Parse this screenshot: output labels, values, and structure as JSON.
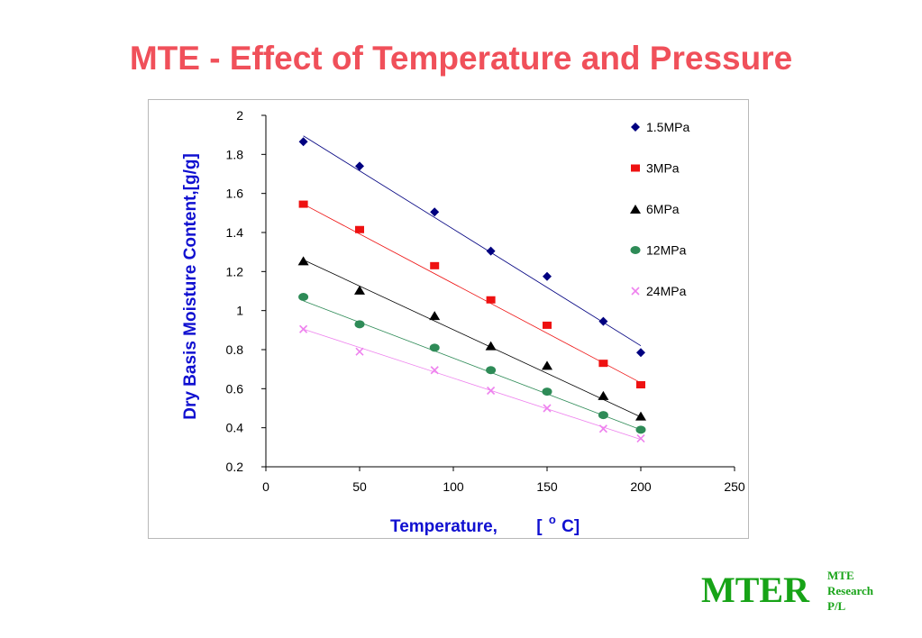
{
  "slide": {
    "title": "MTE - Effect of Temperature and Pressure"
  },
  "logo": {
    "main": "MTER",
    "line1": "MTE",
    "line2": "Research",
    "line3": "P/L",
    "color": "#17a317"
  },
  "chart_data": {
    "type": "scatter",
    "xlabel": "Temperature,      [°C]",
    "xlabel_prefix": "Temperature,",
    "xlabel_unit_open": "[",
    "xlabel_unit_deg": "o",
    "xlabel_unit_close": "C]",
    "ylabel": "Dry Basis Moisture Content,[g/g]",
    "xlim": [
      0,
      250
    ],
    "ylim": [
      0.2,
      2
    ],
    "xticks": [
      "0",
      "50",
      "100",
      "150",
      "200",
      "250"
    ],
    "yticks": [
      "0.2",
      "0.4",
      "0.6",
      "0.8",
      "1",
      "1.2",
      "1.4",
      "1.6",
      "1.8",
      "2"
    ],
    "grid": false,
    "legend_position": "top-right",
    "x": [
      20,
      50,
      90,
      120,
      150,
      180,
      200
    ],
    "series": [
      {
        "name": "1.5MPa",
        "marker": "diamond",
        "color": "#000080",
        "values": [
          1.865,
          1.74,
          1.505,
          1.305,
          1.175,
          0.945,
          0.785
        ],
        "trend": [
          1.895,
          0.82
        ]
      },
      {
        "name": "3MPa",
        "marker": "square",
        "color": "#ee1111",
        "values": [
          1.545,
          1.415,
          1.23,
          1.055,
          0.925,
          0.73,
          0.62
        ],
        "trend": [
          1.545,
          0.63
        ]
      },
      {
        "name": "6MPa",
        "marker": "triangle",
        "color": "#000000",
        "values": [
          1.255,
          1.105,
          0.975,
          0.82,
          0.72,
          0.565,
          0.46
        ],
        "trend": [
          1.26,
          0.455
        ]
      },
      {
        "name": "12MPa",
        "marker": "circle",
        "color": "#2e8b57",
        "values": [
          1.07,
          0.93,
          0.81,
          0.695,
          0.585,
          0.465,
          0.39
        ],
        "trend": [
          1.05,
          0.39
        ]
      },
      {
        "name": "24MPa",
        "marker": "cross",
        "color": "#ee82ee",
        "values": [
          0.905,
          0.79,
          0.695,
          0.59,
          0.5,
          0.395,
          0.345
        ],
        "trend": [
          0.905,
          0.34
        ]
      }
    ]
  }
}
